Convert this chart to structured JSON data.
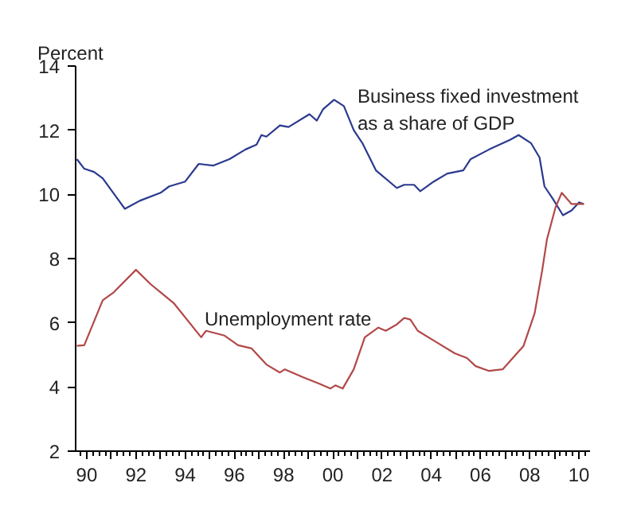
{
  "chart_data": {
    "type": "line",
    "ylabel": "Percent",
    "xlim": [
      1989.55,
      2010.45
    ],
    "ylim": [
      2,
      14
    ],
    "xticks": [
      {
        "value": 1990,
        "label": "90"
      },
      {
        "value": 1991,
        "label": null
      },
      {
        "value": 1992,
        "label": "92"
      },
      {
        "value": 1993,
        "label": null
      },
      {
        "value": 1994,
        "label": "94"
      },
      {
        "value": 1995,
        "label": null
      },
      {
        "value": 1996,
        "label": "96"
      },
      {
        "value": 1997,
        "label": null
      },
      {
        "value": 1998,
        "label": "98"
      },
      {
        "value": 1999,
        "label": null
      },
      {
        "value": 2000,
        "label": "00"
      },
      {
        "value": 2001,
        "label": null
      },
      {
        "value": 2002,
        "label": "02"
      },
      {
        "value": 2003,
        "label": null
      },
      {
        "value": 2004,
        "label": "04"
      },
      {
        "value": 2005,
        "label": null
      },
      {
        "value": 2006,
        "label": "06"
      },
      {
        "value": 2007,
        "label": null
      },
      {
        "value": 2008,
        "label": "08"
      },
      {
        "value": 2009,
        "label": null
      },
      {
        "value": 2010,
        "label": "10"
      }
    ],
    "yticks": [
      2,
      4,
      6,
      8,
      10,
      12,
      14
    ],
    "grid": false,
    "marker": "none",
    "line_style": "solid",
    "annotations": [
      "Business fixed investment\nas a share of GDP",
      "Unemployment rate"
    ],
    "series": [
      {
        "color": "#2b3a8f",
        "x": [
          1989.6,
          1989.9,
          1990.3,
          1990.65,
          1991.55,
          1992.15,
          1993.0,
          1993.35,
          1994.0,
          1994.55,
          1995.15,
          1995.8,
          1996.45,
          1996.9,
          1997.1,
          1997.3,
          1997.85,
          1998.2,
          1999.05,
          1999.35,
          1999.6,
          2000.05,
          2000.45,
          2000.85,
          2001.2,
          2001.75,
          2002.6,
          2002.9,
          2003.3,
          2003.55,
          2004.1,
          2004.65,
          2005.3,
          2005.6,
          2006.35,
          2007.2,
          2007.55,
          2008.05,
          2008.4,
          2008.6,
          2008.95,
          2009.35,
          2009.7,
          2010.0,
          2010.2
        ],
        "values": [
          11.1,
          10.8,
          10.7,
          10.5,
          9.55,
          9.8,
          10.05,
          10.25,
          10.4,
          10.95,
          10.9,
          11.1,
          11.4,
          11.55,
          11.85,
          11.8,
          12.15,
          12.1,
          12.5,
          12.3,
          12.65,
          12.95,
          12.75,
          12.0,
          11.6,
          10.75,
          10.2,
          10.3,
          10.3,
          10.1,
          10.4,
          10.65,
          10.75,
          11.1,
          11.4,
          11.7,
          11.85,
          11.6,
          11.15,
          10.25,
          9.85,
          9.35,
          9.5,
          9.75,
          9.7
        ]
      },
      {
        "color": "#b24848",
        "x": [
          1989.6,
          1989.9,
          1990.65,
          1991.1,
          1992.0,
          1992.6,
          1993.0,
          1993.55,
          1994.65,
          1994.85,
          1995.6,
          1996.15,
          1996.7,
          1997.3,
          1997.85,
          1998.05,
          1998.8,
          1999.45,
          1999.9,
          2000.1,
          2000.4,
          2000.85,
          2001.3,
          2001.85,
          2002.15,
          2002.6,
          2002.9,
          2003.15,
          2003.45,
          2004.2,
          2004.95,
          2005.45,
          2005.8,
          2006.35,
          2006.9,
          2007.75,
          2008.2,
          2008.5,
          2008.7,
          2009.05,
          2009.3,
          2009.7,
          2010.2
        ],
        "values": [
          5.28,
          5.3,
          6.7,
          6.95,
          7.65,
          7.2,
          6.95,
          6.6,
          5.55,
          5.75,
          5.6,
          5.3,
          5.2,
          4.7,
          4.45,
          4.55,
          4.3,
          4.1,
          3.95,
          4.05,
          3.95,
          4.55,
          5.55,
          5.85,
          5.75,
          5.95,
          6.15,
          6.1,
          5.75,
          5.4,
          5.05,
          4.9,
          4.65,
          4.5,
          4.55,
          5.28,
          6.3,
          7.6,
          8.6,
          9.6,
          10.05,
          9.7,
          9.7
        ]
      }
    ]
  }
}
